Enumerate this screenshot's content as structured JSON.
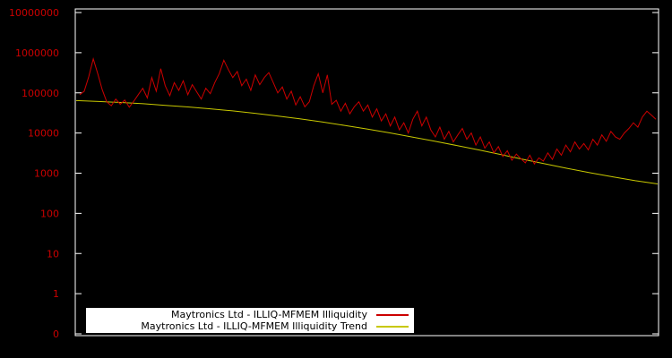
{
  "chart_data": {
    "type": "line",
    "title": "",
    "background": "#000000",
    "border_color": "#ffffff",
    "grid": false,
    "legend_position": "bottom-center",
    "y_axis": {
      "scale": "log",
      "label_color": "#cc0000",
      "tick_labels": [
        "10000000",
        "1000000",
        "100000",
        "10000",
        "1000",
        "100",
        "10",
        "1",
        "0"
      ],
      "ylim": [
        1,
        10000000
      ]
    },
    "x_axis": {
      "tick_labels": []
    },
    "series": [
      {
        "name": "Maytronics Ltd - ILLIQ-MFMEM Illiquidity",
        "color": "#cc0000",
        "values": [
          90000,
          110000,
          250000,
          700000,
          300000,
          120000,
          60000,
          48000,
          70000,
          52000,
          66000,
          44000,
          62000,
          90000,
          130000,
          75000,
          240000,
          110000,
          400000,
          150000,
          85000,
          180000,
          115000,
          200000,
          90000,
          160000,
          105000,
          70000,
          130000,
          95000,
          180000,
          300000,
          650000,
          380000,
          240000,
          340000,
          150000,
          220000,
          115000,
          280000,
          160000,
          240000,
          320000,
          180000,
          100000,
          140000,
          70000,
          110000,
          50000,
          80000,
          45000,
          60000,
          150000,
          300000,
          100000,
          280000,
          52000,
          65000,
          35000,
          55000,
          30000,
          45000,
          60000,
          35000,
          50000,
          25000,
          40000,
          20000,
          30000,
          15000,
          25000,
          12000,
          18000,
          10000,
          22000,
          35000,
          15000,
          25000,
          12000,
          8000,
          14000,
          7000,
          11000,
          6000,
          9000,
          13000,
          7000,
          10000,
          5000,
          8000,
          4200,
          6000,
          3200,
          4600,
          2600,
          3600,
          2100,
          3000,
          2300,
          1800,
          2800,
          1700,
          2400,
          2000,
          3200,
          2200,
          4000,
          2800,
          5000,
          3400,
          6000,
          4000,
          5500,
          3800,
          7000,
          5000,
          9000,
          6200,
          11000,
          8000,
          7000,
          10000,
          13000,
          18000,
          14000,
          25000,
          35000,
          28000,
          22000
        ]
      },
      {
        "name": "Maytronics Ltd - ILLIQ-MFMEM Illiquidity Trend",
        "color": "#c8c800",
        "values": [
          64000,
          61000,
          57500,
          53500,
          49000,
          44500,
          40000,
          35500,
          31000,
          26500,
          22500,
          18800,
          15500,
          12600,
          10100,
          8000,
          6300,
          4900,
          3800,
          2900,
          2200,
          1700,
          1300,
          1020,
          810,
          650,
          540
        ]
      }
    ]
  }
}
